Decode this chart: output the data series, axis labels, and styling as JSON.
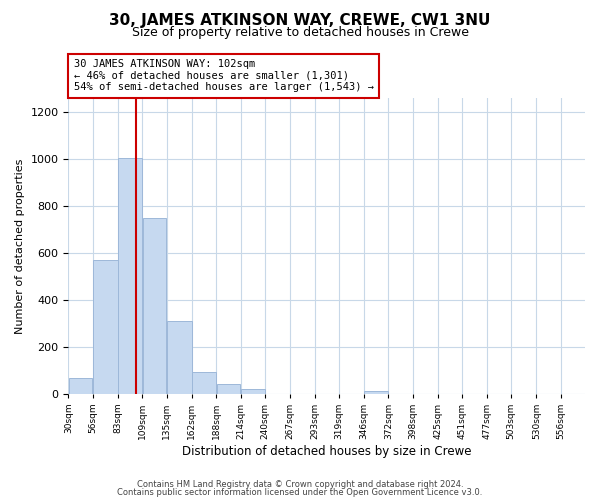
{
  "title": "30, JAMES ATKINSON WAY, CREWE, CW1 3NU",
  "subtitle": "Size of property relative to detached houses in Crewe",
  "xlabel": "Distribution of detached houses by size in Crewe",
  "ylabel": "Number of detached properties",
  "bar_labels": [
    "30sqm",
    "56sqm",
    "83sqm",
    "109sqm",
    "135sqm",
    "162sqm",
    "188sqm",
    "214sqm",
    "240sqm",
    "267sqm",
    "293sqm",
    "319sqm",
    "346sqm",
    "372sqm",
    "398sqm",
    "425sqm",
    "451sqm",
    "477sqm",
    "503sqm",
    "530sqm",
    "556sqm"
  ],
  "bar_values": [
    65,
    570,
    1005,
    750,
    310,
    90,
    40,
    18,
    0,
    0,
    0,
    0,
    10,
    0,
    0,
    0,
    0,
    0,
    0,
    0,
    0
  ],
  "bar_color": "#c6d9f0",
  "bar_edge_color": "#9db8d9",
  "property_line_x": 102,
  "line_color": "#cc0000",
  "annotation_line1": "30 JAMES ATKINSON WAY: 102sqm",
  "annotation_line2": "← 46% of detached houses are smaller (1,301)",
  "annotation_line3": "54% of semi-detached houses are larger (1,543) →",
  "annotation_box_color": "#ffffff",
  "annotation_box_edge": "#cc0000",
  "ylim": [
    0,
    1260
  ],
  "yticks": [
    0,
    200,
    400,
    600,
    800,
    1000,
    1200
  ],
  "footer1": "Contains HM Land Registry data © Crown copyright and database right 2024.",
  "footer2": "Contains public sector information licensed under the Open Government Licence v3.0.",
  "background_color": "#ffffff",
  "grid_color": "#c8d8e8"
}
